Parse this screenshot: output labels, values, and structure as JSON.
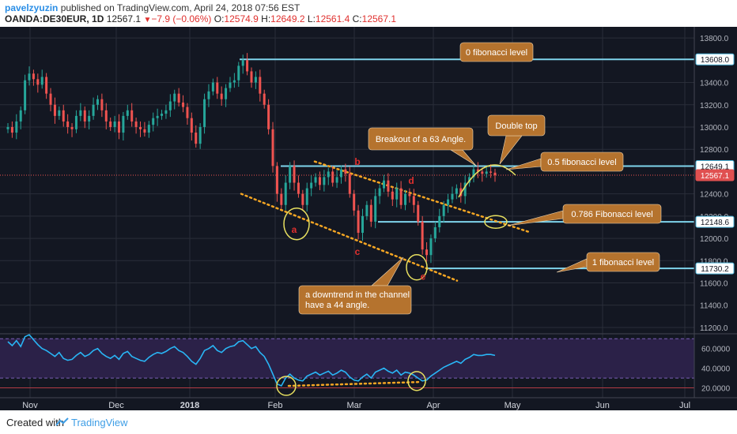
{
  "header": {
    "author": "pavelzyuzin",
    "published_text": "published on TradingView.com, April 24, 2018 07:56 EST",
    "symbol": "OANDA:DE30EUR, 1D",
    "last": "12567.1",
    "change_text": "−7.9 (−0.06%)",
    "o_label": "O:",
    "o_value": "12574.9",
    "h_label": "H:",
    "h_value": "12649.2",
    "l_label": "L:",
    "l_value": "12561.4",
    "c_label": "C:",
    "c_value": "12567.1"
  },
  "footer": {
    "created_with": "Created with",
    "brand": "TradingView"
  },
  "colors": {
    "background": "#131722",
    "grid": "#2a2e39",
    "up": "#26a69a",
    "down": "#ef5350",
    "fib": "#7fd4ec",
    "trend": "#f5a623",
    "ellipse": "#e8e060",
    "callout": "#b5732e",
    "rsi": "#29b6f6",
    "rsi_band": "#2b2148",
    "marker": "#e0302e",
    "price_tag": "#e05050"
  },
  "chart_data": {
    "type": "candlestick",
    "x_ticks": [
      "Nov",
      "Dec",
      "2018",
      "Feb",
      "Mar",
      "Apr",
      "May",
      "Jun",
      "Jul"
    ],
    "y_ticks": [
      "13800.0",
      "13400.0",
      "13200.0",
      "13000.0",
      "12800.0",
      "12400.0",
      "12200.0",
      "12000.0",
      "11800.0",
      "11600.0",
      "11400.0",
      "11200.0"
    ],
    "price_range": [
      11150,
      13900
    ],
    "price_tags": [
      {
        "label": "13608.0",
        "value": 13608,
        "style": "fib"
      },
      {
        "label": "12649.1",
        "value": 12649.1,
        "style": "fib"
      },
      {
        "label": "12567.1",
        "value": 12567.1,
        "style": "current"
      },
      {
        "label": "12148.6",
        "value": 12148.6,
        "style": "fib"
      },
      {
        "label": "11730.2",
        "value": 11730.2,
        "style": "fib"
      }
    ],
    "closes": [
      13000,
      12950,
      13050,
      13150,
      13420,
      13480,
      13430,
      13380,
      13450,
      13300,
      13200,
      13100,
      13150,
      13050,
      13000,
      12980,
      13100,
      13150,
      13050,
      13100,
      13200,
      13250,
      13150,
      13050,
      13000,
      13050,
      12950,
      13100,
      13150,
      13050,
      13000,
      12980,
      12950,
      13020,
      13080,
      13100,
      13120,
      13150,
      13230,
      13300,
      13220,
      13180,
      13080,
      12950,
      12850,
      13000,
      13250,
      13320,
      13400,
      13300,
      13250,
      13350,
      13400,
      13420,
      13550,
      13600,
      13500,
      13400,
      13450,
      13300,
      13200,
      12980,
      12650,
      12400,
      12300,
      12500,
      12650,
      12500,
      12400,
      12300,
      12450,
      12500,
      12550,
      12480,
      12550,
      12600,
      12500,
      12550,
      12620,
      12580,
      12400,
      12250,
      12050,
      12200,
      12300,
      12150,
      12380,
      12450,
      12520,
      12420,
      12350,
      12450,
      12300,
      12400,
      12380,
      12300,
      12150,
      11900,
      11850,
      12000,
      12100,
      12200,
      12300,
      12350,
      12400,
      12450,
      12380,
      12500,
      12550,
      12620,
      12600,
      12580,
      12600,
      12590,
      12567
    ],
    "rsi_ticks": [
      "60.0000",
      "40.0000",
      "20.0000"
    ],
    "rsi_range": [
      10,
      75
    ],
    "rsi_levels": [
      70,
      30
    ],
    "rsi": [
      67,
      63,
      68,
      62,
      72,
      74,
      69,
      64,
      60,
      58,
      55,
      52,
      56,
      50,
      48,
      49,
      53,
      56,
      52,
      54,
      58,
      60,
      55,
      52,
      50,
      53,
      49,
      55,
      57,
      52,
      50,
      48,
      47,
      51,
      54,
      56,
      55,
      57,
      60,
      62,
      58,
      56,
      52,
      47,
      44,
      50,
      58,
      60,
      63,
      58,
      56,
      60,
      62,
      63,
      67,
      68,
      64,
      60,
      62,
      56,
      52,
      44,
      34,
      24,
      22,
      30,
      34,
      30,
      28,
      27,
      32,
      34,
      36,
      33,
      35,
      37,
      33,
      35,
      38,
      36,
      31,
      28,
      27,
      31,
      34,
      30,
      36,
      38,
      40,
      37,
      35,
      38,
      33,
      36,
      35,
      33,
      30,
      27,
      28,
      32,
      35,
      38,
      41,
      43,
      45,
      47,
      45,
      49,
      51,
      54,
      53,
      53,
      54,
      54,
      53
    ],
    "annotations": [
      {
        "text": "0 fibonacci level"
      },
      {
        "text": "Double top"
      },
      {
        "text": "Breakout of a 63 Angle."
      },
      {
        "text": "0.5 fibonacci level"
      },
      {
        "text": "0.786 Fibonacci level"
      },
      {
        "text": "1 fibonacci level"
      },
      {
        "text": "a downtrend in the channel have a 44 angle."
      }
    ],
    "markers": [
      "a",
      "b",
      "c",
      "d",
      "e"
    ]
  }
}
